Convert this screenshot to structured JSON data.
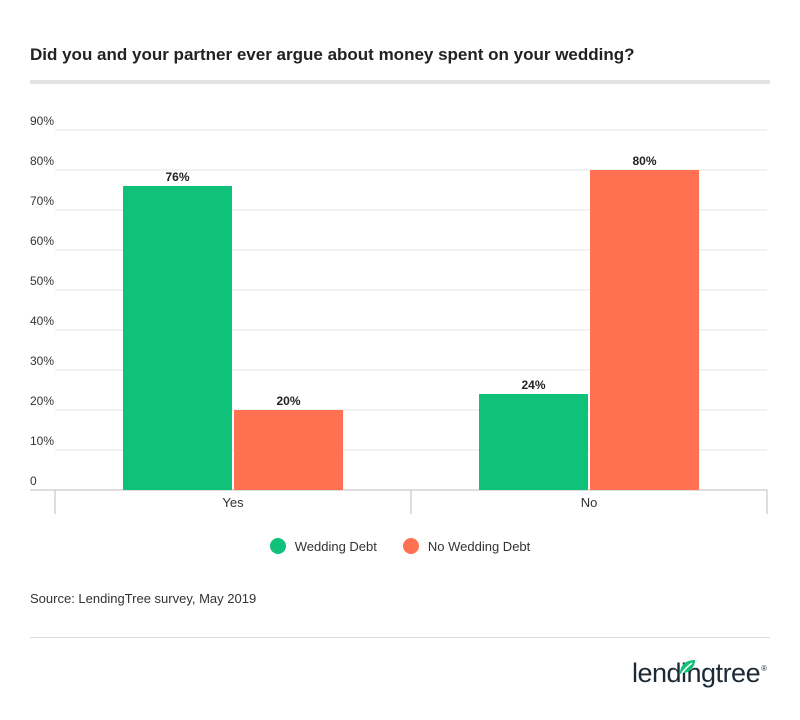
{
  "header": {
    "title": "Did you and your partner ever argue about money spent on your wedding?"
  },
  "chart_data": {
    "type": "bar",
    "title": "Did you and your partner ever argue about money spent on your wedding?",
    "categories": [
      "Yes",
      "No"
    ],
    "series": [
      {
        "name": "Wedding Debt",
        "color": "#10c17a",
        "values": [
          76,
          24
        ]
      },
      {
        "name": "No Wedding Debt",
        "color": "#ff7150",
        "values": [
          20,
          80
        ]
      }
    ],
    "data_labels": [
      [
        "76%",
        "24%"
      ],
      [
        "20%",
        "80%"
      ]
    ],
    "yticks": [
      "0",
      "10%",
      "20%",
      "30%",
      "40%",
      "50%",
      "60%",
      "70%",
      "80%",
      "90%"
    ],
    "ylim": [
      0,
      90
    ],
    "xlabel": "",
    "ylabel": "",
    "grid": true,
    "legend_position": "bottom"
  },
  "legend": {
    "items": [
      {
        "label": "Wedding Debt",
        "color": "#10c17a"
      },
      {
        "label": "No Wedding Debt",
        "color": "#ff7150"
      }
    ]
  },
  "footer": {
    "source": "Source: LendingTree survey, May 2019",
    "logo_text": "lendingtree"
  }
}
